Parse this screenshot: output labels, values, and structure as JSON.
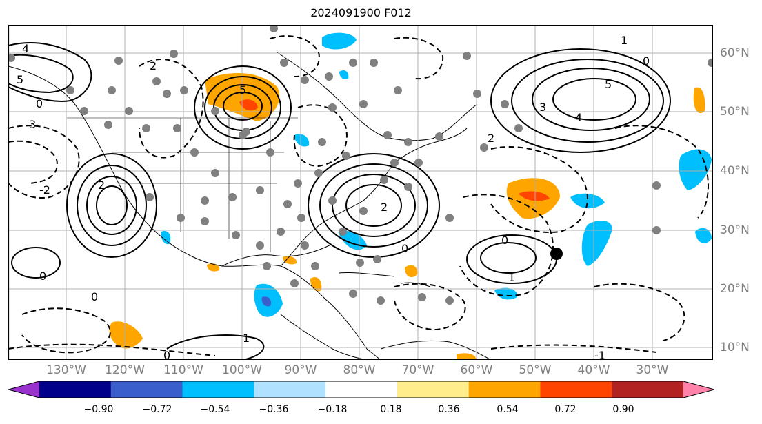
{
  "title": "2024091900 F012",
  "map": {
    "longitude_labels": [
      "130°W",
      "120°W",
      "110°W",
      "100°W",
      "90°W",
      "80°W",
      "70°W",
      "60°W",
      "50°W",
      "40°W",
      "30°W"
    ],
    "latitude_labels": [
      "60°N",
      "50°N",
      "40°N",
      "30°N",
      "20°N",
      "10°N"
    ],
    "gridline_color": "#b0b0b0",
    "contour_labels": [
      "0",
      "1",
      "2",
      "3",
      "4",
      "5",
      "-1",
      "-2"
    ],
    "storm_marker": {
      "lon": -46,
      "lat": 26
    }
  },
  "colorbar": {
    "tick_labels": [
      "−0.90",
      "−0.72",
      "−0.54",
      "−0.36",
      "−0.18",
      "0.18",
      "0.36",
      "0.54",
      "0.72",
      "0.90"
    ],
    "colors": [
      "#9a32cd",
      "#00008b",
      "#3a5fcd",
      "#00bfff",
      "#b0e2ff",
      "#ffffff",
      "#ffec8b",
      "#ffa500",
      "#ff4500",
      "#b22222",
      "#ff82ab"
    ]
  }
}
